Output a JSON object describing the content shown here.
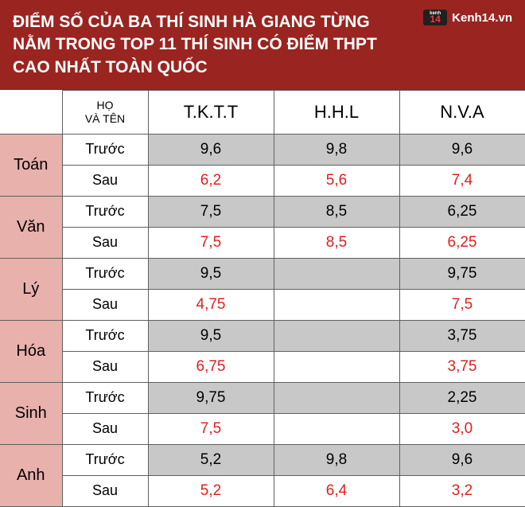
{
  "header": {
    "title": "ĐIỂM SỐ CỦA BA THÍ SINH HÀ GIANG TỪNG NẰM TRONG TOP 11 THÍ SINH CÓ ĐIỂM THPT CAO NHẤT TOÀN QUỐC",
    "brand_badge_top": "kenh",
    "brand_badge_num": "14",
    "brand_text": "Kenh14.vn"
  },
  "table": {
    "name_header_l1": "HỌ",
    "name_header_l2": "VÀ TÊN",
    "students": [
      "T.K.T.T",
      "H.H.L",
      "N.V.A"
    ],
    "phase_before": "Trước",
    "phase_after": "Sau",
    "subjects": [
      {
        "name": "Toán",
        "truoc": [
          "9,6",
          "9,8",
          "9,6"
        ],
        "sau": [
          "6,2",
          "5,6",
          "7,4"
        ]
      },
      {
        "name": "Văn",
        "truoc": [
          "7,5",
          "8,5",
          "6,25"
        ],
        "sau": [
          "7,5",
          "8,5",
          "6,25"
        ]
      },
      {
        "name": "Lý",
        "truoc": [
          "9,5",
          "",
          "9,75"
        ],
        "sau": [
          "4,75",
          "",
          "7,5"
        ]
      },
      {
        "name": "Hóa",
        "truoc": [
          "9,5",
          "",
          "3,75"
        ],
        "sau": [
          "6,75",
          "",
          "3,75"
        ]
      },
      {
        "name": "Sinh",
        "truoc": [
          "9,75",
          "",
          "2,25"
        ],
        "sau": [
          "7,5",
          "",
          "3,0"
        ]
      },
      {
        "name": "Anh",
        "truoc": [
          "5,2",
          "9,8",
          "9,6"
        ],
        "sau": [
          "5,2",
          "6,4",
          "3,2"
        ]
      }
    ]
  },
  "colors": {
    "header_bg": "#9a2420",
    "subject_bg": "#e8b1ac",
    "truoc_bg": "#c8c8c8",
    "sau_color": "#e02020",
    "border": "#606060"
  }
}
